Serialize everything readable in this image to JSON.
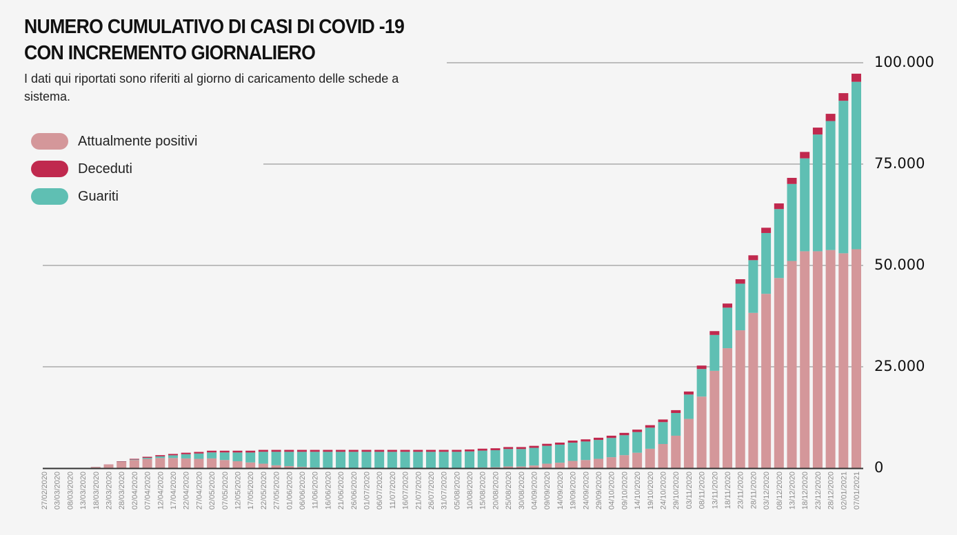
{
  "header": {
    "title_line1": "NUMERO CUMULATIVO DI CASI DI COVID -19",
    "title_line2": "CON INCREMENTO GIORNALIERO",
    "subtitle": "I dati qui riportati sono riferiti al giorno di caricamento delle schede a sistema."
  },
  "colors": {
    "positivi": "#d4979a",
    "deceduti": "#c0294e",
    "guariti": "#5fbfb3",
    "background": "#f5f5f5"
  },
  "chart_data": {
    "type": "bar",
    "stacked": true,
    "title": "NUMERO CUMULATIVO DI CASI DI COVID -19 CON INCREMENTO GIORNALIERO",
    "xlabel": "",
    "ylabel": "",
    "ylim": [
      0,
      100000
    ],
    "y_ticks": [
      "0",
      "25.000",
      "50.000",
      "75.000",
      "100.000"
    ],
    "y_tick_values": [
      0,
      25000,
      50000,
      75000,
      100000
    ],
    "grid": true,
    "legend_position": "top-left",
    "categories": [
      "27/02/2020",
      "03/03/2020",
      "08/03/2020",
      "13/03/2020",
      "18/03/2020",
      "23/03/2020",
      "28/03/2020",
      "02/04/2020",
      "07/04/2020",
      "12/04/2020",
      "17/04/2020",
      "22/04/2020",
      "27/04/2020",
      "02/05/2020",
      "07/05/2020",
      "12/05/2020",
      "17/05/2020",
      "22/05/2020",
      "27/05/2020",
      "01/06/2020",
      "06/06/2020",
      "11/06/2020",
      "16/06/2020",
      "21/06/2020",
      "26/06/2020",
      "01/07/2020",
      "06/07/2020",
      "11/07/2020",
      "16/07/2020",
      "21/07/2020",
      "26/07/2020",
      "31/07/2020",
      "05/08/2020",
      "10/08/2020",
      "15/08/2020",
      "20/08/2020",
      "25/08/2020",
      "30/08/2020",
      "04/09/2020",
      "09/09/2020",
      "14/09/2020",
      "19/09/2020",
      "24/09/2020",
      "29/09/2020",
      "04/10/2020",
      "09/10/2020",
      "14/10/2020",
      "19/10/2020",
      "24/10/2020",
      "29/10/2020",
      "03/11/2020",
      "08/11/2020",
      "13/11/2020",
      "18/11/2020",
      "23/11/2020",
      "28/11/2020",
      "03/12/2020",
      "08/12/2020",
      "13/12/2020",
      "18/12/2020",
      "23/12/2020",
      "28/12/2020",
      "02/01/2021",
      "07/01/2021"
    ],
    "series": [
      {
        "name": "Attualmente positivi",
        "color": "#d4979a",
        "values": [
          0,
          0,
          0,
          0,
          280,
          850,
          1550,
          2000,
          2300,
          2500,
          2500,
          2400,
          2300,
          2400,
          2000,
          1700,
          1400,
          1100,
          700,
          500,
          300,
          150,
          100,
          80,
          70,
          60,
          50,
          50,
          50,
          50,
          50,
          50,
          50,
          80,
          150,
          218,
          415,
          400,
          655,
          1100,
          1340,
          1780,
          2000,
          2300,
          2700,
          3200,
          3800,
          4780,
          5950,
          8000,
          12150,
          17650,
          24000,
          29580,
          34000,
          38300,
          43000,
          46900,
          51100,
          53500,
          53500,
          53800,
          53000,
          54000
        ]
      },
      {
        "name": "Deceduti",
        "color": "#c0294e",
        "values": [
          0,
          0,
          0,
          0,
          10,
          40,
          100,
          180,
          250,
          300,
          330,
          370,
          390,
          420,
          430,
          440,
          450,
          460,
          470,
          470,
          470,
          470,
          470,
          470,
          470,
          470,
          470,
          470,
          470,
          470,
          470,
          470,
          475,
          478,
          480,
          482,
          485,
          490,
          495,
          500,
          510,
          520,
          530,
          545,
          560,
          580,
          600,
          620,
          650,
          700,
          750,
          850,
          950,
          1020,
          1100,
          1200,
          1300,
          1400,
          1500,
          1580,
          1700,
          1780,
          1880,
          2000
        ]
      },
      {
        "name": "Guariti",
        "color": "#5fbfb3",
        "values": [
          0,
          0,
          0,
          0,
          10,
          10,
          50,
          120,
          250,
          400,
          670,
          1030,
          1310,
          1480,
          1870,
          2160,
          2450,
          2940,
          3330,
          3530,
          3730,
          3880,
          3930,
          3950,
          3960,
          3970,
          3980,
          3980,
          3980,
          3980,
          3980,
          3980,
          3980,
          4042,
          4170,
          4200,
          4300,
          4310,
          4350,
          4400,
          4450,
          4500,
          4570,
          4655,
          4740,
          4920,
          5100,
          5200,
          5400,
          5600,
          6000,
          6800,
          8850,
          10000,
          11500,
          13000,
          15000,
          17000,
          19000,
          22920,
          28800,
          31820,
          37620,
          41300
        ]
      }
    ]
  },
  "legend": {
    "items": [
      {
        "label": "Attualmente positivi",
        "icon": "pill-swatch"
      },
      {
        "label": "Deceduti",
        "icon": "pill-swatch"
      },
      {
        "label": "Guariti",
        "icon": "pill-swatch"
      }
    ]
  }
}
